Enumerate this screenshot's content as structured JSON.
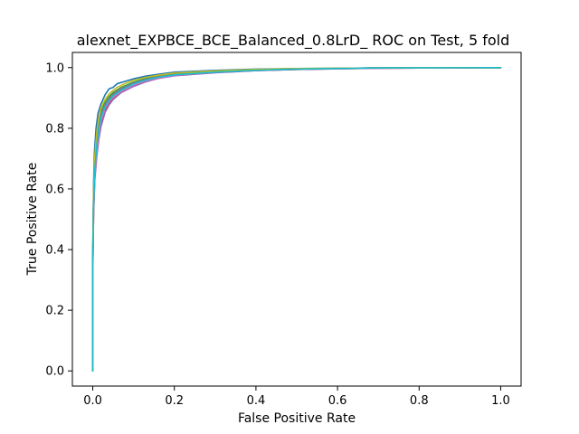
{
  "chart_data": {
    "type": "line",
    "title": "alexnet_EXPBCE_BCE_Balanced_0.8LrD_ ROC on Test, 5 fold",
    "xlabel": "False Positive Rate",
    "ylabel": "True Positive Rate",
    "xlim": [
      -0.05,
      1.05
    ],
    "ylim": [
      -0.05,
      1.05
    ],
    "xticks": [
      0.0,
      0.2,
      0.4,
      0.6,
      0.8,
      1.0
    ],
    "yticks": [
      0.0,
      0.2,
      0.4,
      0.6,
      0.8,
      1.0
    ],
    "xtick_labels": [
      "0.0",
      "0.2",
      "0.4",
      "0.6",
      "0.8",
      "1.0"
    ],
    "ytick_labels": [
      "0.0",
      "0.2",
      "0.4",
      "0.6",
      "0.8",
      "1.0"
    ],
    "grid": false,
    "legend": false,
    "series": [
      {
        "color": "#1f77b4",
        "x": [
          0,
          0,
          0.002,
          0.004,
          0.008,
          0.013,
          0.02,
          0.03,
          0.04,
          0.05,
          0.06,
          0.08,
          0.1,
          0.13,
          0.16,
          0.2,
          0.3,
          0.4,
          0.5,
          0.7,
          1.0
        ],
        "y": [
          0,
          0.4,
          0.62,
          0.72,
          0.8,
          0.85,
          0.88,
          0.91,
          0.93,
          0.935,
          0.947,
          0.955,
          0.963,
          0.972,
          0.978,
          0.985,
          0.991,
          0.995,
          0.997,
          0.999,
          1.0
        ]
      },
      {
        "color": "#ff7f0e",
        "x": [
          0,
          0,
          0.002,
          0.005,
          0.01,
          0.015,
          0.02,
          0.03,
          0.04,
          0.05,
          0.07,
          0.1,
          0.13,
          0.16,
          0.2,
          0.3,
          0.4,
          0.5,
          0.7,
          1.0
        ],
        "y": [
          0,
          0.35,
          0.55,
          0.66,
          0.74,
          0.79,
          0.83,
          0.87,
          0.89,
          0.905,
          0.925,
          0.945,
          0.958,
          0.966,
          0.975,
          0.985,
          0.991,
          0.995,
          0.999,
          1.0
        ]
      },
      {
        "color": "#2ca02c",
        "x": [
          0,
          0,
          0.002,
          0.005,
          0.01,
          0.015,
          0.02,
          0.03,
          0.04,
          0.05,
          0.07,
          0.1,
          0.13,
          0.16,
          0.2,
          0.3,
          0.4,
          0.5,
          0.7,
          1.0
        ],
        "y": [
          0,
          0.38,
          0.58,
          0.69,
          0.77,
          0.82,
          0.855,
          0.885,
          0.905,
          0.918,
          0.935,
          0.952,
          0.964,
          0.972,
          0.98,
          0.988,
          0.993,
          0.996,
          0.999,
          1.0
        ]
      },
      {
        "color": "#d62728",
        "x": [
          0,
          0,
          0.002,
          0.005,
          0.01,
          0.015,
          0.02,
          0.03,
          0.04,
          0.05,
          0.07,
          0.1,
          0.13,
          0.16,
          0.2,
          0.3,
          0.4,
          0.5,
          0.7,
          1.0
        ],
        "y": [
          0,
          0.33,
          0.53,
          0.64,
          0.72,
          0.775,
          0.815,
          0.86,
          0.883,
          0.9,
          0.92,
          0.94,
          0.955,
          0.965,
          0.974,
          0.984,
          0.99,
          0.994,
          0.998,
          1.0
        ]
      },
      {
        "color": "#9467bd",
        "x": [
          0,
          0,
          0.002,
          0.005,
          0.01,
          0.015,
          0.02,
          0.03,
          0.04,
          0.05,
          0.07,
          0.1,
          0.13,
          0.16,
          0.2,
          0.3,
          0.4,
          0.5,
          0.7,
          1.0
        ],
        "y": [
          0,
          0.32,
          0.52,
          0.63,
          0.71,
          0.765,
          0.805,
          0.852,
          0.877,
          0.895,
          0.918,
          0.938,
          0.953,
          0.964,
          0.973,
          0.983,
          0.99,
          0.994,
          0.998,
          1.0
        ]
      },
      {
        "color": "#8c564b",
        "x": [
          0,
          0,
          0.002,
          0.005,
          0.01,
          0.015,
          0.02,
          0.03,
          0.04,
          0.05,
          0.07,
          0.1,
          0.13,
          0.16,
          0.2,
          0.3,
          0.4,
          0.5,
          0.7,
          1.0
        ],
        "y": [
          0,
          0.36,
          0.56,
          0.67,
          0.75,
          0.8,
          0.84,
          0.875,
          0.895,
          0.91,
          0.928,
          0.947,
          0.96,
          0.969,
          0.977,
          0.986,
          0.992,
          0.995,
          0.999,
          1.0
        ]
      },
      {
        "color": "#e377c2",
        "x": [
          0,
          0,
          0.002,
          0.005,
          0.01,
          0.015,
          0.02,
          0.03,
          0.04,
          0.05,
          0.07,
          0.1,
          0.13,
          0.16,
          0.2,
          0.3,
          0.4,
          0.5,
          0.7,
          1.0
        ],
        "y": [
          0,
          0.34,
          0.54,
          0.65,
          0.73,
          0.785,
          0.825,
          0.866,
          0.888,
          0.903,
          0.923,
          0.943,
          0.957,
          0.966,
          0.975,
          0.985,
          0.991,
          0.995,
          0.998,
          1.0
        ]
      },
      {
        "color": "#7f7f7f",
        "x": [
          0,
          0,
          0.002,
          0.005,
          0.01,
          0.015,
          0.02,
          0.03,
          0.04,
          0.05,
          0.07,
          0.1,
          0.13,
          0.16,
          0.2,
          0.3,
          0.4,
          0.5,
          0.7,
          1.0
        ],
        "y": [
          0,
          0.37,
          0.57,
          0.68,
          0.76,
          0.81,
          0.848,
          0.88,
          0.9,
          0.914,
          0.932,
          0.95,
          0.962,
          0.97,
          0.978,
          0.987,
          0.992,
          0.996,
          0.999,
          1.0
        ]
      },
      {
        "color": "#bcbd22",
        "x": [
          0,
          0,
          0.002,
          0.005,
          0.01,
          0.015,
          0.02,
          0.03,
          0.04,
          0.05,
          0.06,
          0.08,
          0.1,
          0.13,
          0.16,
          0.2,
          0.3,
          0.4,
          0.5,
          0.7,
          1.0
        ],
        "y": [
          0,
          0.39,
          0.6,
          0.71,
          0.79,
          0.835,
          0.868,
          0.895,
          0.913,
          0.925,
          0.935,
          0.948,
          0.958,
          0.968,
          0.975,
          0.982,
          0.989,
          0.994,
          0.997,
          0.999,
          1.0
        ]
      },
      {
        "color": "#17becf",
        "x": [
          0,
          0,
          0.002,
          0.005,
          0.01,
          0.015,
          0.02,
          0.03,
          0.04,
          0.05,
          0.07,
          0.1,
          0.13,
          0.16,
          0.2,
          0.3,
          0.4,
          0.5,
          0.7,
          1.0
        ],
        "y": [
          0,
          0.35,
          0.55,
          0.665,
          0.745,
          0.795,
          0.835,
          0.87,
          0.892,
          0.907,
          0.926,
          0.946,
          0.959,
          0.968,
          0.976,
          0.985,
          0.991,
          0.995,
          0.999,
          1.0
        ]
      }
    ]
  }
}
